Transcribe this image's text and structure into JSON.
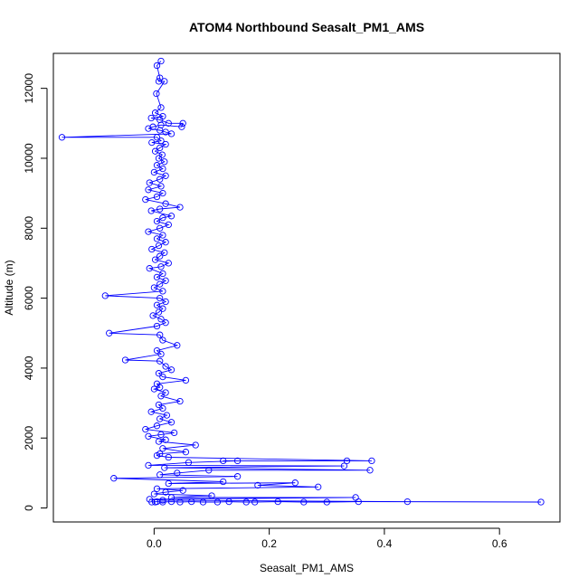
{
  "chart_data": {
    "type": "line",
    "title": "ATOM4 Northbound Seasalt_PM1_AMS",
    "xlabel": "Seasalt_PM1_AMS",
    "ylabel": "Altitude (m)",
    "xlim": [
      -0.175,
      0.705
    ],
    "ylim": [
      -400,
      13000
    ],
    "x_ticks": [
      0.0,
      0.2,
      0.4,
      0.6
    ],
    "x_tick_labels": [
      "0.0",
      "0.2",
      "0.4",
      "0.6"
    ],
    "y_ticks": [
      0,
      2000,
      4000,
      6000,
      8000,
      10000,
      12000
    ],
    "y_tick_labels": [
      "0",
      "2000",
      "4000",
      "6000",
      "8000",
      "10000",
      "12000"
    ],
    "grid": false,
    "legend": "none",
    "colors": {
      "series": "#0000ff",
      "axes": "#000000",
      "background": "#ffffff"
    },
    "series": [
      {
        "marker": "open-circle",
        "points": [
          [
            0.012,
            12780
          ],
          [
            0.005,
            12650
          ],
          [
            0.01,
            12300
          ],
          [
            0.008,
            12200
          ],
          [
            0.018,
            12200
          ],
          [
            0.004,
            11850
          ],
          [
            0.012,
            11450
          ],
          [
            0.002,
            11300
          ],
          [
            0.015,
            11200
          ],
          [
            -0.005,
            11150
          ],
          [
            0.01,
            11100
          ],
          [
            0.025,
            11000
          ],
          [
            0.05,
            11000
          ],
          [
            0.048,
            10900
          ],
          [
            0.012,
            10950
          ],
          [
            -0.002,
            10900
          ],
          [
            -0.01,
            10850
          ],
          [
            0.01,
            10800
          ],
          [
            0.02,
            10750
          ],
          [
            0.03,
            10700
          ],
          [
            -0.16,
            10600
          ],
          [
            0.005,
            10600
          ],
          [
            0.012,
            10500
          ],
          [
            -0.004,
            10450
          ],
          [
            0.02,
            10400
          ],
          [
            0.01,
            10300
          ],
          [
            0.002,
            10200
          ],
          [
            0.014,
            10100
          ],
          [
            0.008,
            10000
          ],
          [
            0.018,
            9900
          ],
          [
            0.005,
            9800
          ],
          [
            0.015,
            9700
          ],
          [
            0.0,
            9600
          ],
          [
            0.02,
            9500
          ],
          [
            0.01,
            9400
          ],
          [
            -0.008,
            9300
          ],
          [
            0.012,
            9200
          ],
          [
            -0.01,
            9100
          ],
          [
            0.015,
            9000
          ],
          [
            0.005,
            8900
          ],
          [
            -0.015,
            8820
          ],
          [
            0.02,
            8700
          ],
          [
            0.045,
            8600
          ],
          [
            0.01,
            8550
          ],
          [
            -0.005,
            8500
          ],
          [
            0.03,
            8350
          ],
          [
            0.015,
            8300
          ],
          [
            0.005,
            8200
          ],
          [
            0.025,
            8100
          ],
          [
            0.01,
            8000
          ],
          [
            -0.01,
            7900
          ],
          [
            0.015,
            7800
          ],
          [
            0.005,
            7700
          ],
          [
            0.02,
            7600
          ],
          [
            0.008,
            7500
          ],
          [
            -0.004,
            7400
          ],
          [
            0.018,
            7300
          ],
          [
            0.01,
            7200
          ],
          [
            0.002,
            7100
          ],
          [
            0.025,
            7000
          ],
          [
            0.012,
            6900
          ],
          [
            -0.008,
            6850
          ],
          [
            0.015,
            6700
          ],
          [
            0.005,
            6600
          ],
          [
            0.02,
            6500
          ],
          [
            0.01,
            6400
          ],
          [
            0.0,
            6300
          ],
          [
            0.015,
            6200
          ],
          [
            -0.085,
            6070
          ],
          [
            0.01,
            6000
          ],
          [
            0.02,
            5900
          ],
          [
            0.005,
            5800
          ],
          [
            0.015,
            5700
          ],
          [
            0.008,
            5600
          ],
          [
            -0.002,
            5500
          ],
          [
            0.012,
            5400
          ],
          [
            0.02,
            5300
          ],
          [
            0.005,
            5200
          ],
          [
            -0.078,
            5000
          ],
          [
            0.01,
            4950
          ],
          [
            0.015,
            4800
          ],
          [
            0.04,
            4650
          ],
          [
            0.005,
            4500
          ],
          [
            0.012,
            4400
          ],
          [
            -0.05,
            4230
          ],
          [
            0.01,
            4200
          ],
          [
            0.02,
            4050
          ],
          [
            0.03,
            3950
          ],
          [
            0.008,
            3850
          ],
          [
            0.015,
            3750
          ],
          [
            0.055,
            3650
          ],
          [
            0.005,
            3550
          ],
          [
            0.01,
            3450
          ],
          [
            0.0,
            3400
          ],
          [
            0.02,
            3300
          ],
          [
            0.012,
            3200
          ],
          [
            0.045,
            3050
          ],
          [
            0.008,
            2950
          ],
          [
            0.015,
            2850
          ],
          [
            -0.005,
            2750
          ],
          [
            0.022,
            2650
          ],
          [
            0.01,
            2550
          ],
          [
            0.03,
            2450
          ],
          [
            0.005,
            2350
          ],
          [
            -0.015,
            2250
          ],
          [
            0.035,
            2150
          ],
          [
            0.012,
            2100
          ],
          [
            -0.01,
            2050
          ],
          [
            0.02,
            1950
          ],
          [
            0.008,
            1900
          ],
          [
            0.072,
            1800
          ],
          [
            0.015,
            1700
          ],
          [
            0.055,
            1600
          ],
          [
            0.01,
            1550
          ],
          [
            0.005,
            1500
          ],
          [
            0.025,
            1450
          ],
          [
            0.378,
            1350
          ],
          [
            0.335,
            1350
          ],
          [
            0.12,
            1350
          ],
          [
            0.145,
            1350
          ],
          [
            0.06,
            1300
          ],
          [
            -0.01,
            1220
          ],
          [
            0.33,
            1200
          ],
          [
            0.018,
            1150
          ],
          [
            0.375,
            1080
          ],
          [
            0.095,
            1080
          ],
          [
            0.04,
            1000
          ],
          [
            0.01,
            950
          ],
          [
            0.145,
            900
          ],
          [
            -0.07,
            850
          ],
          [
            0.12,
            750
          ],
          [
            0.025,
            700
          ],
          [
            0.245,
            720
          ],
          [
            0.18,
            650
          ],
          [
            0.285,
            600
          ],
          [
            0.005,
            550
          ],
          [
            0.05,
            500
          ],
          [
            0.02,
            450
          ],
          [
            0.0,
            400
          ],
          [
            0.1,
            350
          ],
          [
            0.03,
            300
          ],
          [
            0.35,
            300
          ],
          [
            -0.008,
            250
          ],
          [
            0.015,
            220
          ],
          [
            0.44,
            180
          ],
          [
            0.672,
            170
          ],
          [
            0.355,
            180
          ],
          [
            0.3,
            170
          ],
          [
            0.26,
            170
          ],
          [
            0.215,
            180
          ],
          [
            0.175,
            170
          ],
          [
            0.16,
            170
          ],
          [
            0.13,
            180
          ],
          [
            0.11,
            170
          ],
          [
            0.085,
            170
          ],
          [
            0.065,
            180
          ],
          [
            0.045,
            170
          ],
          [
            0.03,
            180
          ],
          [
            0.015,
            170
          ],
          [
            0.005,
            180
          ],
          [
            -0.004,
            170
          ],
          [
            0.002,
            170
          ]
        ]
      }
    ]
  }
}
